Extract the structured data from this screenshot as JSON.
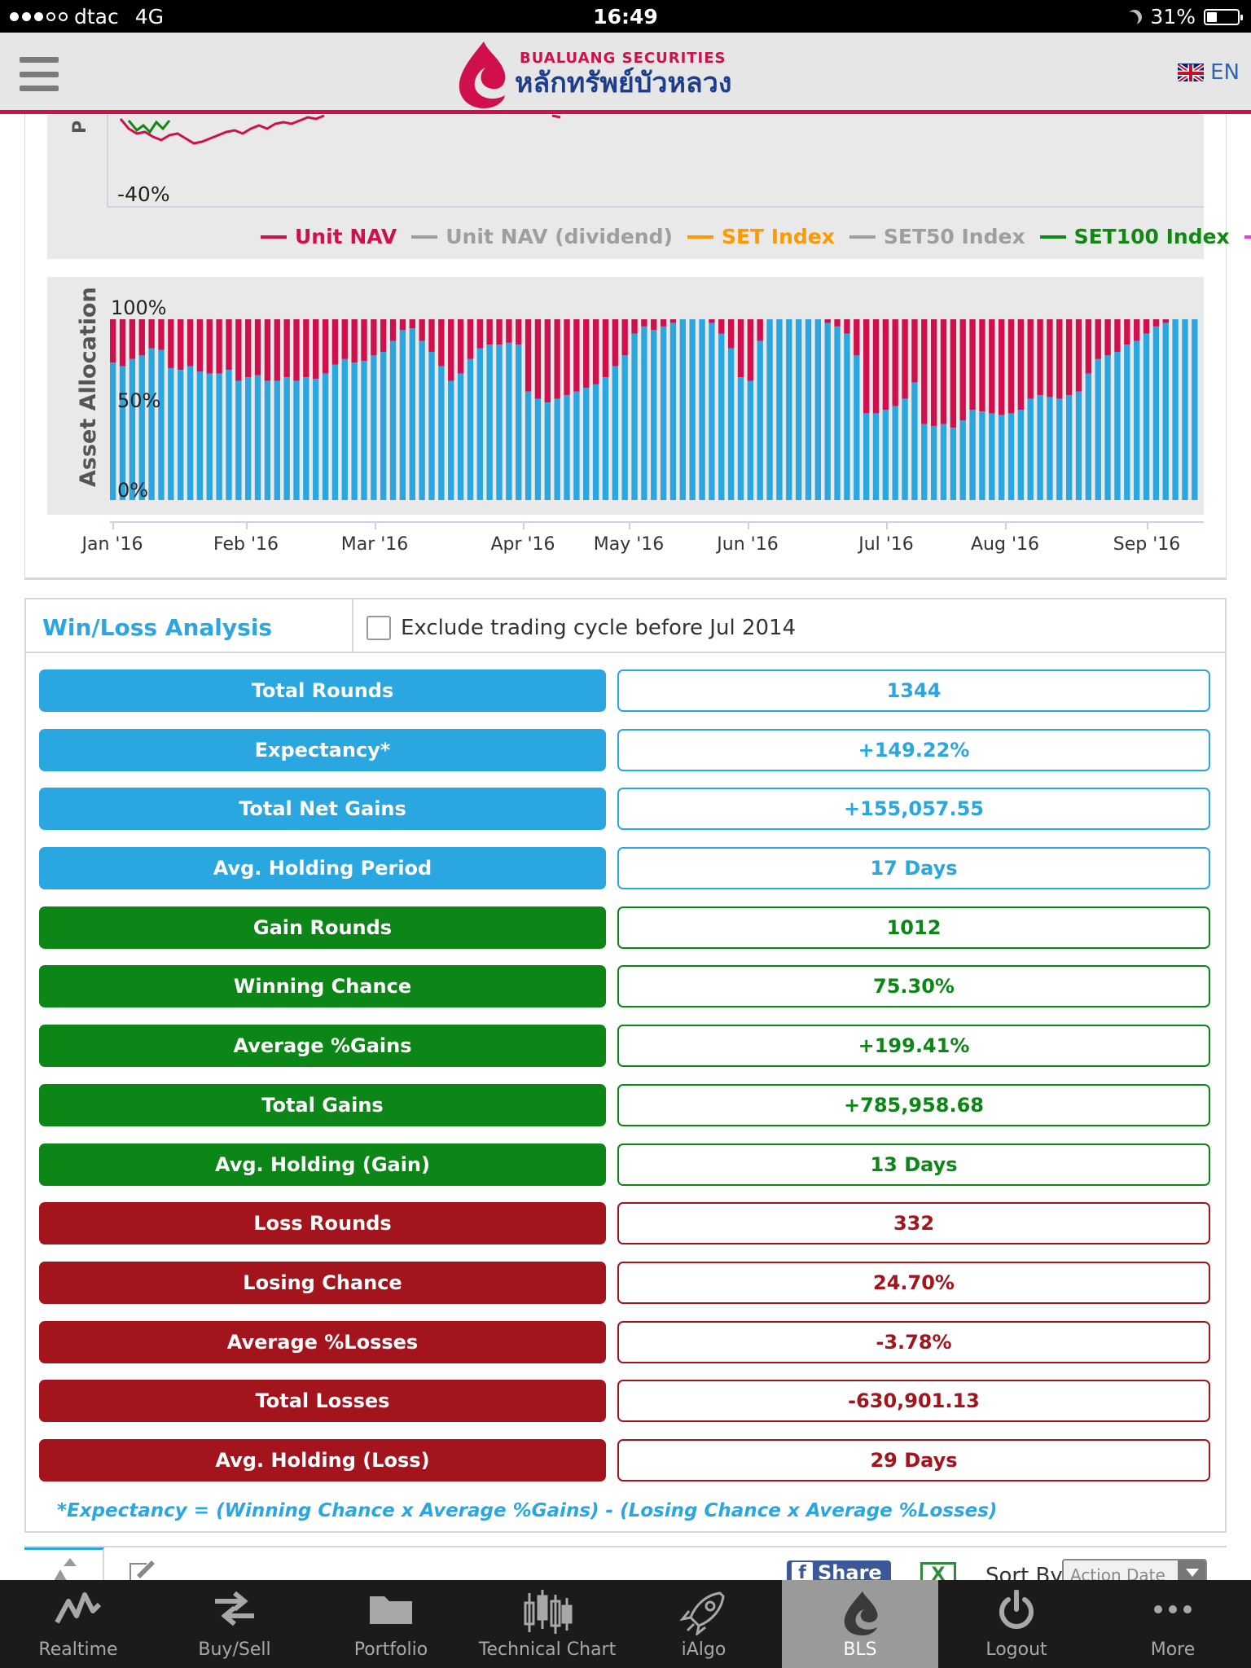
{
  "status_bar": {
    "carrier": "dtac",
    "network": "4G",
    "time": "16:49",
    "battery": "31%",
    "battery_level": 0.31,
    "signal_bars": 3
  },
  "header": {
    "brand_en": "BUALUANG SECURITIES",
    "brand_th": "หลักทรัพย์บัวหลวง",
    "lang": "EN",
    "accent_color": "#d0104c"
  },
  "performance_chart": {
    "y_tick_bottom": "-40%",
    "y_label": "P",
    "legend": [
      {
        "name": "Unit NAV",
        "color": "#d0104c"
      },
      {
        "name": "Unit NAV (dividend)",
        "color": "#9e9e9e"
      },
      {
        "name": "SET Index",
        "color": "#ff9900"
      },
      {
        "name": "SET50 Index",
        "color": "#9e9e9e"
      },
      {
        "name": "SET100 Index",
        "color": "#118811"
      }
    ]
  },
  "chart_data": {
    "type": "bar",
    "title": "",
    "ylabel": "Asset Allocation",
    "y_ticks": [
      "100%",
      "50%",
      "0%"
    ],
    "ylim": [
      0,
      100
    ],
    "x_ticks": [
      "Jan '16",
      "Feb '16",
      "Mar '16",
      "Apr '16",
      "May '16",
      "Jun '16",
      "Jul '16",
      "Aug '16",
      "Sep '16"
    ],
    "colors": {
      "equity": "#2aa6e0",
      "cash": "#d0104c"
    },
    "equity_percent_series": [
      76,
      74,
      78,
      80,
      84,
      83,
      73,
      72,
      74,
      71,
      70,
      70,
      72,
      66,
      68,
      69,
      66,
      66,
      68,
      66,
      68,
      67,
      70,
      75,
      78,
      76,
      77,
      80,
      82,
      88,
      94,
      95,
      88,
      82,
      74,
      66,
      70,
      78,
      84,
      86,
      86,
      87,
      86,
      60,
      56,
      54,
      56,
      58,
      60,
      62,
      64,
      68,
      74,
      80,
      92,
      96,
      94,
      96,
      98,
      100,
      100,
      100,
      98,
      92,
      84,
      68,
      66,
      88,
      100,
      100,
      100,
      100,
      100,
      100,
      98,
      96,
      92,
      80,
      48,
      48,
      50,
      52,
      56,
      65,
      42,
      41,
      42,
      40,
      44,
      50,
      49,
      48,
      47,
      48,
      50,
      56,
      58,
      57,
      56,
      58,
      60,
      70,
      78,
      80,
      82,
      86,
      88,
      92,
      96,
      98,
      100,
      100,
      100
    ]
  },
  "win_loss": {
    "title": "Win/Loss Analysis",
    "exclude_label": "Exclude trading cycle before Jul 2014",
    "rows": [
      {
        "label": "Total Rounds",
        "value": "1344",
        "group": "summary"
      },
      {
        "label": "Expectancy*",
        "value": "+149.22%",
        "group": "summary"
      },
      {
        "label": "Total Net Gains",
        "value": "+155,057.55",
        "group": "summary"
      },
      {
        "label": "Avg. Holding Period",
        "value": "17 Days",
        "group": "summary"
      },
      {
        "label": "Gain Rounds",
        "value": "1012",
        "group": "gain"
      },
      {
        "label": "Winning Chance",
        "value": "75.30%",
        "group": "gain"
      },
      {
        "label": "Average %Gains",
        "value": "+199.41%",
        "group": "gain"
      },
      {
        "label": "Total Gains",
        "value": "+785,958.68",
        "group": "gain"
      },
      {
        "label": "Avg. Holding (Gain)",
        "value": "13 Days",
        "group": "gain"
      },
      {
        "label": "Loss Rounds",
        "value": "332",
        "group": "loss"
      },
      {
        "label": "Losing Chance",
        "value": "24.70%",
        "group": "loss"
      },
      {
        "label": "Average %Losses",
        "value": "-3.78%",
        "group": "loss"
      },
      {
        "label": "Total Losses",
        "value": "-630,901.13",
        "group": "loss"
      },
      {
        "label": "Avg. Holding (Loss)",
        "value": "29 Days",
        "group": "loss"
      }
    ],
    "group_colors": {
      "summary": "#2aa6e0",
      "gain": "#0d8618",
      "loss": "#a3141d"
    },
    "footnote": "*Expectancy = (Winning Chance x Average %Gains) - (Losing Chance x Average %Losses)"
  },
  "toolbar": {
    "share_label": "Share",
    "sort_label": "Sort By",
    "sort_value": "Action Date"
  },
  "bottom_nav": [
    {
      "label": "Realtime",
      "icon": "trend-line-icon"
    },
    {
      "label": "Buy/Sell",
      "icon": "swap-arrows-icon"
    },
    {
      "label": "Portfolio",
      "icon": "folder-icon"
    },
    {
      "label": "Technical Chart",
      "icon": "candlestick-icon"
    },
    {
      "label": "iAlgo",
      "icon": "rocket-icon"
    },
    {
      "label": "BLS",
      "icon": "lotus-icon",
      "active": true
    },
    {
      "label": "Logout",
      "icon": "power-icon"
    },
    {
      "label": "More",
      "icon": "more-dots-icon"
    }
  ]
}
